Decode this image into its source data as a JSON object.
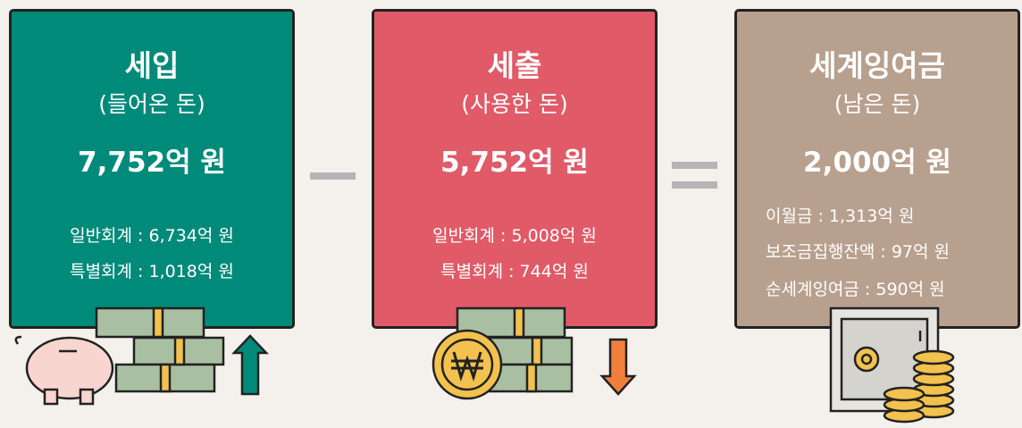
{
  "panels": [
    {
      "title": "세입",
      "subtitle": "(들어온 돈)",
      "amount": "7,752억 원",
      "lines": [
        "일반회계 : 6,734억 원",
        "특별회계 : 1,018억 원"
      ]
    },
    {
      "title": "세출",
      "subtitle": "(사용한 돈)",
      "amount": "5,752억 원",
      "lines": [
        "일반회계 : 5,008억 원",
        "특별회계 : 744억 원"
      ]
    },
    {
      "title": "세계잉여금",
      "subtitle": "(남은 돈)",
      "amount": "2,000억 원",
      "lines": [
        "이월금 : 1,313억 원",
        "보조금집행잔액 : 97억 원",
        "순세계잉여금 : 590억 원"
      ]
    }
  ]
}
